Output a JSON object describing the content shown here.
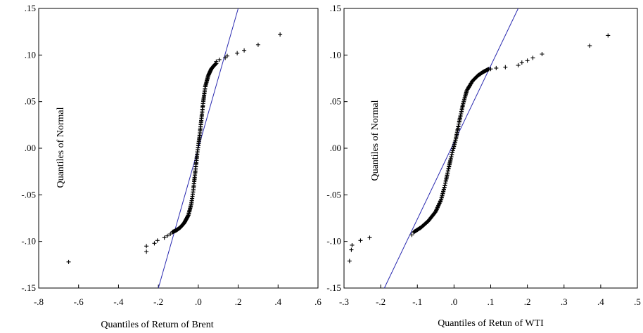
{
  "chart_data": [
    {
      "type": "scatter",
      "subtype": "qq-plot",
      "title": "",
      "xlabel": "Quantiles of Return of Brent",
      "ylabel": "Quantiles of Normal",
      "xlim": [
        -0.8,
        0.6
      ],
      "ylim": [
        -0.15,
        0.15
      ],
      "xticks": [
        -0.8,
        -0.6,
        -0.4,
        -0.2,
        0.0,
        0.2,
        0.4,
        0.6
      ],
      "xtick_labels": [
        "-.8",
        "-.6",
        "-.4",
        "-.2",
        ".0",
        ".2",
        ".4",
        ".6"
      ],
      "yticks": [
        -0.15,
        -0.1,
        -0.05,
        0.0,
        0.05,
        0.1,
        0.15
      ],
      "ytick_labels": [
        "-.15",
        "-.10",
        "-.05",
        ".00",
        ".05",
        ".10",
        ".15"
      ],
      "grid": false,
      "marker": "plus",
      "reference_line": {
        "x": [
          -0.2,
          0.2
        ],
        "y": [
          -0.15,
          0.15
        ],
        "color": "#2a2ab0"
      },
      "outliers": [
        [
          -0.65,
          -0.122
        ],
        [
          -0.26,
          -0.111
        ],
        [
          -0.26,
          -0.105
        ],
        [
          -0.22,
          -0.102
        ],
        [
          -0.205,
          -0.099
        ],
        [
          -0.17,
          -0.096
        ],
        [
          -0.155,
          -0.094
        ],
        [
          -0.14,
          -0.092
        ],
        [
          0.09,
          0.093
        ],
        [
          0.105,
          0.095
        ],
        [
          0.135,
          0.097
        ],
        [
          0.145,
          0.099
        ],
        [
          0.195,
          0.102
        ],
        [
          0.23,
          0.105
        ],
        [
          0.3,
          0.111
        ],
        [
          0.41,
          0.122
        ]
      ],
      "body_curve": {
        "x": [
          -0.13,
          -0.11,
          -0.09,
          -0.07,
          -0.05,
          -0.035,
          -0.025,
          -0.015,
          -0.005,
          0.005,
          0.015,
          0.025,
          0.035,
          0.05,
          0.065,
          0.08,
          0.09
        ],
        "y": [
          -0.09,
          -0.088,
          -0.085,
          -0.08,
          -0.072,
          -0.06,
          -0.045,
          -0.025,
          -0.005,
          0.01,
          0.03,
          0.05,
          0.066,
          0.078,
          0.085,
          0.089,
          0.091
        ]
      }
    },
    {
      "type": "scatter",
      "subtype": "qq-plot",
      "title": "",
      "xlabel": "Quantiles of Retun of WTI",
      "ylabel": "Quantiles of Normal",
      "xlim": [
        -0.3,
        0.5
      ],
      "ylim": [
        -0.15,
        0.15
      ],
      "xticks": [
        -0.3,
        -0.2,
        -0.1,
        0.0,
        0.1,
        0.2,
        0.3,
        0.4,
        0.5
      ],
      "xtick_labels": [
        "-.3",
        "-.2",
        "-.1",
        ".0",
        ".1",
        ".2",
        ".3",
        ".4",
        ".5"
      ],
      "yticks": [
        -0.15,
        -0.1,
        -0.05,
        0.0,
        0.05,
        0.1,
        0.15
      ],
      "ytick_labels": [
        "-.15",
        "-.10",
        "-.05",
        ".00",
        ".05",
        ".10",
        ".15"
      ],
      "grid": false,
      "marker": "plus",
      "reference_line": {
        "x": [
          -0.19,
          0.175
        ],
        "y": [
          -0.15,
          0.15
        ],
        "color": "#2a2ab0"
      },
      "outliers": [
        [
          -0.285,
          -0.121
        ],
        [
          -0.28,
          -0.109
        ],
        [
          -0.278,
          -0.104
        ],
        [
          -0.255,
          -0.099
        ],
        [
          -0.23,
          -0.096
        ],
        [
          -0.115,
          -0.093
        ],
        [
          0.1,
          0.085
        ],
        [
          0.115,
          0.086
        ],
        [
          0.14,
          0.087
        ],
        [
          0.175,
          0.089
        ],
        [
          0.185,
          0.092
        ],
        [
          0.2,
          0.094
        ],
        [
          0.215,
          0.097
        ],
        [
          0.24,
          0.101
        ],
        [
          0.37,
          0.11
        ],
        [
          0.42,
          0.121
        ]
      ],
      "body_curve": {
        "x": [
          -0.11,
          -0.09,
          -0.07,
          -0.05,
          -0.035,
          -0.025,
          -0.015,
          -0.005,
          0.005,
          0.015,
          0.025,
          0.035,
          0.05,
          0.065,
          0.08,
          0.095
        ],
        "y": [
          -0.09,
          -0.085,
          -0.078,
          -0.068,
          -0.055,
          -0.04,
          -0.022,
          -0.005,
          0.01,
          0.03,
          0.048,
          0.062,
          0.072,
          0.078,
          0.082,
          0.085
        ]
      }
    }
  ]
}
